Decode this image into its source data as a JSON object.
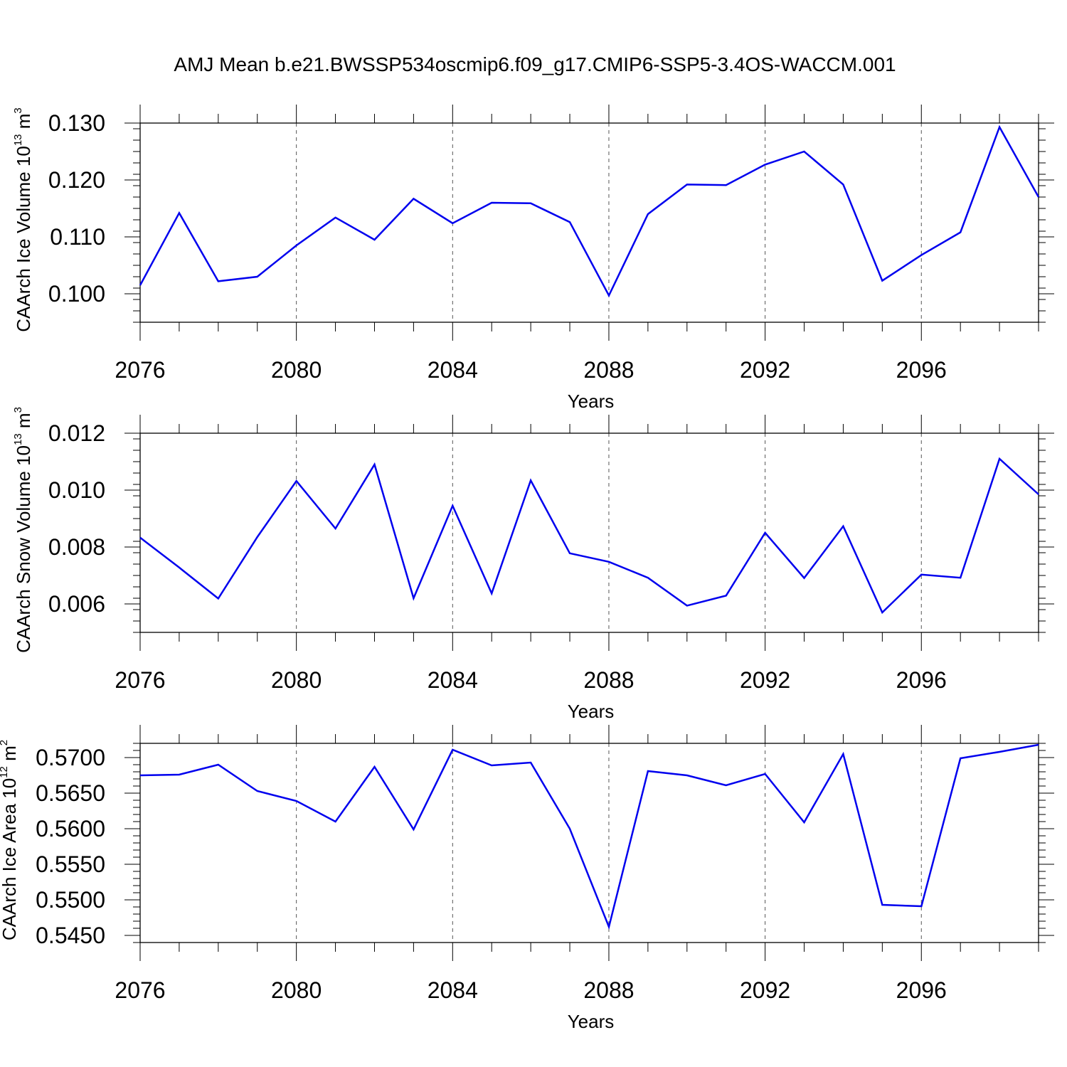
{
  "title": "AMJ Mean b.e21.BWSSP534oscmip6.f09_g17.CMIP6-SSP5-3.4OS-WACCM.001",
  "colors": {
    "line": "#0000ee",
    "grid": "#555555",
    "axis": "#000000"
  },
  "chart_data": [
    {
      "type": "line",
      "ylabel": {
        "text": "CAArch Ice Volume 10",
        "exp": "13",
        "unit": " m",
        "unit_exp": "3"
      },
      "xlabel": "Years",
      "xlim": [
        2076,
        2099
      ],
      "ylim": [
        0.095,
        0.13
      ],
      "xticks": [
        2076,
        2080,
        2084,
        2088,
        2092,
        2096
      ],
      "xtick_labels": [
        "2076",
        "2080",
        "2084",
        "2088",
        "2092",
        "2096"
      ],
      "yticks": [
        0.1,
        0.11,
        0.12,
        0.13
      ],
      "ytick_labels": [
        "0.100",
        "0.110",
        "0.120",
        "0.130"
      ],
      "yminor_step": 0.002,
      "grid": "x-dashed",
      "x": [
        2076,
        2077,
        2078,
        2079,
        2080,
        2081,
        2082,
        2083,
        2084,
        2085,
        2086,
        2087,
        2088,
        2089,
        2090,
        2091,
        2092,
        2093,
        2094,
        2095,
        2096,
        2097,
        2098,
        2099
      ],
      "series": [
        {
          "values": [
            0.1015,
            0.1142,
            0.1022,
            0.103,
            0.1085,
            0.1134,
            0.1095,
            0.1167,
            0.1124,
            0.116,
            0.1159,
            0.1126,
            0.0997,
            0.114,
            0.1192,
            0.1191,
            0.1227,
            0.125,
            0.1192,
            0.1023,
            0.1068,
            0.1108,
            0.1293,
            0.117
          ]
        }
      ]
    },
    {
      "type": "line",
      "ylabel": {
        "text": "CAArch Snow Volume 10",
        "exp": "13",
        "unit": " m",
        "unit_exp": "3"
      },
      "xlabel": "Years",
      "xlim": [
        2076,
        2099
      ],
      "ylim": [
        0.005,
        0.012
      ],
      "xticks": [
        2076,
        2080,
        2084,
        2088,
        2092,
        2096
      ],
      "xtick_labels": [
        "2076",
        "2080",
        "2084",
        "2088",
        "2092",
        "2096"
      ],
      "yticks": [
        0.006,
        0.008,
        0.01,
        0.012
      ],
      "ytick_labels": [
        "0.006",
        "0.008",
        "0.010",
        "0.012"
      ],
      "yminor_step": 0.0004,
      "grid": "x-dashed",
      "x": [
        2076,
        2077,
        2078,
        2079,
        2080,
        2081,
        2082,
        2083,
        2084,
        2085,
        2086,
        2087,
        2088,
        2089,
        2090,
        2091,
        2092,
        2093,
        2094,
        2095,
        2096,
        2097,
        2098,
        2099
      ],
      "series": [
        {
          "values": [
            0.00833,
            0.00728,
            0.00619,
            0.00835,
            0.01032,
            0.00865,
            0.0109,
            0.0062,
            0.00945,
            0.00637,
            0.01034,
            0.00778,
            0.00748,
            0.00692,
            0.00594,
            0.00629,
            0.0085,
            0.00691,
            0.00873,
            0.0057,
            0.00703,
            0.00692,
            0.0111,
            0.00985
          ]
        }
      ]
    },
    {
      "type": "line",
      "ylabel": {
        "text": "CAArch Ice Area 10",
        "exp": "12",
        "unit": " m",
        "unit_exp": "2"
      },
      "xlabel": "Years",
      "xlim": [
        2076,
        2099
      ],
      "ylim": [
        0.544,
        0.572
      ],
      "xticks": [
        2076,
        2080,
        2084,
        2088,
        2092,
        2096
      ],
      "xtick_labels": [
        "2076",
        "2080",
        "2084",
        "2088",
        "2092",
        "2096"
      ],
      "yticks": [
        0.545,
        0.55,
        0.555,
        0.56,
        0.565,
        0.57
      ],
      "ytick_labels": [
        "0.5450",
        "0.5500",
        "0.5550",
        "0.5600",
        "0.5650",
        "0.5700"
      ],
      "yminor_step": 0.001,
      "grid": "x-dashed",
      "x": [
        2076,
        2077,
        2078,
        2079,
        2080,
        2081,
        2082,
        2083,
        2084,
        2085,
        2086,
        2087,
        2088,
        2089,
        2090,
        2091,
        2092,
        2093,
        2094,
        2095,
        2096,
        2097,
        2098,
        2099
      ],
      "series": [
        {
          "values": [
            0.5675,
            0.5676,
            0.569,
            0.5653,
            0.5639,
            0.561,
            0.5687,
            0.5599,
            0.5711,
            0.5689,
            0.5693,
            0.56,
            0.5462,
            0.5681,
            0.5675,
            0.5661,
            0.5677,
            0.5609,
            0.5705,
            0.5493,
            0.5491,
            0.5699,
            0.5708,
            0.5718
          ]
        }
      ]
    }
  ]
}
